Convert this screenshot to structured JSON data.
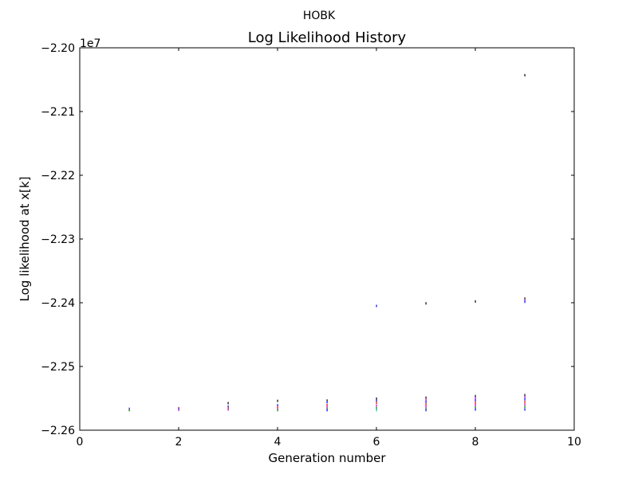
{
  "suptitle": "HOBK",
  "chart_data": {
    "type": "scatter",
    "title": "Log Likelihood History",
    "xlabel": "Generation number",
    "ylabel": "Log likelihood at x[k]",
    "xlim": [
      0,
      10
    ],
    "ylim": [
      -22600000,
      -22000000
    ],
    "y_offset_label": "1e7",
    "x_ticks": [
      0,
      2,
      4,
      6,
      8,
      10
    ],
    "x_tick_labels": [
      "0",
      "2",
      "4",
      "6",
      "8",
      "10"
    ],
    "y_ticks": [
      -22600000,
      -22500000,
      -22400000,
      -22300000,
      -22200000,
      -22100000,
      -22000000
    ],
    "y_tick_labels": [
      "−2.26",
      "−2.25",
      "−2.24",
      "−2.23",
      "−2.22",
      "−2.21",
      "−2.20"
    ],
    "grid": false,
    "legend": "none",
    "series_colors": [
      "#0000ff",
      "#008000",
      "#ff0000",
      "#00bfbf",
      "#bf00bf",
      "#000000"
    ],
    "points": [
      {
        "x": 1,
        "y": -22566500,
        "color": "#0000ff"
      },
      {
        "x": 1,
        "y": -22567500,
        "color": "#bf00bf"
      },
      {
        "x": 1,
        "y": -22568500,
        "color": "#008000"
      },
      {
        "x": 2,
        "y": -22565500,
        "color": "#ff0000"
      },
      {
        "x": 2,
        "y": -22566500,
        "color": "#0000ff"
      },
      {
        "x": 2,
        "y": -22568000,
        "color": "#bf00bf"
      },
      {
        "x": 3,
        "y": -22557500,
        "color": "#000000"
      },
      {
        "x": 3,
        "y": -22563000,
        "color": "#0000ff"
      },
      {
        "x": 3,
        "y": -22565500,
        "color": "#ff0000"
      },
      {
        "x": 3,
        "y": -22567500,
        "color": "#bf00bf"
      },
      {
        "x": 4,
        "y": -22554000,
        "color": "#000000"
      },
      {
        "x": 4,
        "y": -22561000,
        "color": "#0000ff"
      },
      {
        "x": 4,
        "y": -22564000,
        "color": "#ff0000"
      },
      {
        "x": 4,
        "y": -22566500,
        "color": "#bf00bf"
      },
      {
        "x": 4,
        "y": -22568500,
        "color": "#008000"
      },
      {
        "x": 5,
        "y": -22553500,
        "color": "#000000"
      },
      {
        "x": 5,
        "y": -22556000,
        "color": "#0000ff"
      },
      {
        "x": 5,
        "y": -22560500,
        "color": "#ff0000"
      },
      {
        "x": 5,
        "y": -22563500,
        "color": "#bf00bf"
      },
      {
        "x": 5,
        "y": -22566500,
        "color": "#008000"
      },
      {
        "x": 5,
        "y": -22568500,
        "color": "#0000ff"
      },
      {
        "x": 6,
        "y": -22405000,
        "color": "#0000ff"
      },
      {
        "x": 6,
        "y": -22550500,
        "color": "#000000"
      },
      {
        "x": 6,
        "y": -22553500,
        "color": "#0000ff"
      },
      {
        "x": 6,
        "y": -22557000,
        "color": "#ff0000"
      },
      {
        "x": 6,
        "y": -22561500,
        "color": "#bf00bf"
      },
      {
        "x": 6,
        "y": -22565500,
        "color": "#008000"
      },
      {
        "x": 6,
        "y": -22568500,
        "color": "#00bfbf"
      },
      {
        "x": 7,
        "y": -22401000,
        "color": "#000000"
      },
      {
        "x": 7,
        "y": -22549000,
        "color": "#000000"
      },
      {
        "x": 7,
        "y": -22552000,
        "color": "#bf00bf"
      },
      {
        "x": 7,
        "y": -22555500,
        "color": "#0000ff"
      },
      {
        "x": 7,
        "y": -22559500,
        "color": "#ff0000"
      },
      {
        "x": 7,
        "y": -22563000,
        "color": "#bf00bf"
      },
      {
        "x": 7,
        "y": -22566500,
        "color": "#008000"
      },
      {
        "x": 7,
        "y": -22568500,
        "color": "#0000ff"
      },
      {
        "x": 8,
        "y": -22398000,
        "color": "#000000"
      },
      {
        "x": 8,
        "y": -22546500,
        "color": "#000000"
      },
      {
        "x": 8,
        "y": -22549500,
        "color": "#bf00bf"
      },
      {
        "x": 8,
        "y": -22553000,
        "color": "#0000ff"
      },
      {
        "x": 8,
        "y": -22557000,
        "color": "#ff0000"
      },
      {
        "x": 8,
        "y": -22560500,
        "color": "#bf00bf"
      },
      {
        "x": 8,
        "y": -22564000,
        "color": "#008000"
      },
      {
        "x": 8,
        "y": -22567500,
        "color": "#0000ff"
      },
      {
        "x": 9,
        "y": -22043000,
        "color": "#000000"
      },
      {
        "x": 9,
        "y": -22393500,
        "color": "#000000"
      },
      {
        "x": 9,
        "y": -22396000,
        "color": "#bf00bf"
      },
      {
        "x": 9,
        "y": -22398500,
        "color": "#0000ff"
      },
      {
        "x": 9,
        "y": -22545000,
        "color": "#000000"
      },
      {
        "x": 9,
        "y": -22548000,
        "color": "#bf00bf"
      },
      {
        "x": 9,
        "y": -22551500,
        "color": "#0000ff"
      },
      {
        "x": 9,
        "y": -22555500,
        "color": "#ff0000"
      },
      {
        "x": 9,
        "y": -22559500,
        "color": "#bf00bf"
      },
      {
        "x": 9,
        "y": -22563500,
        "color": "#008000"
      },
      {
        "x": 9,
        "y": -22567500,
        "color": "#0000ff"
      }
    ]
  }
}
